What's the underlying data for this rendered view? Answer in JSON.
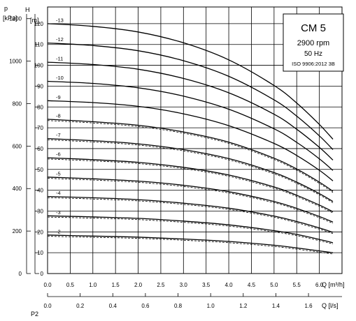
{
  "chart_data": {
    "type": "line",
    "title": "CM 5",
    "info": [
      "2900 rpm",
      "50 Hz",
      "ISO 9906:2012 3B"
    ],
    "left_axis_letter": "p",
    "left_axis_unit": "[kPa]",
    "head_axis_letter": "H",
    "head_axis_unit": "[m]",
    "xlabel": "Q [m³/h]",
    "x2label": "Q [l/s]",
    "bottom_cut_label": "P2",
    "xlim": [
      0,
      6.5
    ],
    "ylim": [
      0,
      128
    ],
    "kpa_lim": [
      0,
      1255
    ],
    "x_ticks": [
      "0.0",
      "0.5",
      "1.0",
      "1.5",
      "2.0",
      "2.5",
      "3.0",
      "3.5",
      "4.0",
      "4.5",
      "5.0",
      "5.5",
      "6.0"
    ],
    "x_tick_values": [
      0,
      0.5,
      1,
      1.5,
      2,
      2.5,
      3,
      3.5,
      4,
      4.5,
      5,
      5.5,
      6
    ],
    "x2_ticks": [
      "0.0",
      "0.2",
      "0.4",
      "0.6",
      "0.8",
      "1.0",
      "1.2",
      "1.4",
      "1.6"
    ],
    "x2_tick_values": [
      0,
      0.2,
      0.4,
      0.6,
      0.8,
      1.0,
      1.2,
      1.4,
      1.6
    ],
    "y_ticks": [
      "0",
      "10",
      "20",
      "30",
      "40",
      "50",
      "60",
      "70",
      "80",
      "90",
      "100",
      "110",
      "120"
    ],
    "y_tick_values": [
      0,
      10,
      20,
      30,
      40,
      50,
      60,
      70,
      80,
      90,
      100,
      110,
      120
    ],
    "kpa_ticks": [
      "0",
      "200",
      "400",
      "600",
      "800",
      "1000",
      "1200"
    ],
    "kpa_tick_values": [
      0,
      200,
      400,
      600,
      800,
      1000,
      1200
    ],
    "grid": true,
    "series": [
      {
        "name": "-2",
        "values": [
          [
            0,
            18.5
          ],
          [
            1,
            18.0
          ],
          [
            2,
            17.5
          ],
          [
            3,
            16.6
          ],
          [
            4,
            15.4
          ],
          [
            5,
            13.6
          ],
          [
            5.5,
            12.3
          ],
          [
            6,
            10.9
          ],
          [
            6.3,
            10.0
          ]
        ],
        "dashed": true
      },
      {
        "name": "-3",
        "values": [
          [
            0,
            27.7
          ],
          [
            1,
            27.2
          ],
          [
            2,
            26.5
          ],
          [
            3,
            25.2
          ],
          [
            4,
            23.4
          ],
          [
            5,
            20.6
          ],
          [
            5.5,
            18.8
          ],
          [
            6,
            16.4
          ],
          [
            6.3,
            14.8
          ]
        ],
        "dashed": true
      },
      {
        "name": "-4",
        "values": [
          [
            0,
            37.0
          ],
          [
            1,
            36.4
          ],
          [
            2,
            35.5
          ],
          [
            3,
            33.8
          ],
          [
            4,
            31.4
          ],
          [
            5,
            27.6
          ],
          [
            5.5,
            25.0
          ],
          [
            6,
            21.9
          ],
          [
            6.3,
            19.8
          ]
        ],
        "dashed": true
      },
      {
        "name": "-5",
        "values": [
          [
            0,
            46.3
          ],
          [
            1,
            45.5
          ],
          [
            2,
            44.4
          ],
          [
            3,
            42.4
          ],
          [
            4,
            39.3
          ],
          [
            5,
            34.6
          ],
          [
            5.5,
            31.3
          ],
          [
            6,
            27.4
          ],
          [
            6.3,
            24.7
          ]
        ],
        "dashed": true
      },
      {
        "name": "-6",
        "values": [
          [
            0,
            55.6
          ],
          [
            1,
            54.7
          ],
          [
            2,
            53.4
          ],
          [
            3,
            51.0
          ],
          [
            4,
            47.3
          ],
          [
            5,
            41.6
          ],
          [
            5.5,
            37.6
          ],
          [
            6,
            32.9
          ],
          [
            6.3,
            29.7
          ]
        ],
        "dashed": true
      },
      {
        "name": "-7",
        "values": [
          [
            0,
            64.8
          ],
          [
            1,
            63.8
          ],
          [
            2,
            62.3
          ],
          [
            3,
            59.5
          ],
          [
            4,
            55.2
          ],
          [
            5,
            48.5
          ],
          [
            5.5,
            43.9
          ],
          [
            6,
            38.4
          ],
          [
            6.3,
            34.6
          ]
        ],
        "dashed": true
      },
      {
        "name": "-8",
        "values": [
          [
            0,
            74.1
          ],
          [
            1,
            72.9
          ],
          [
            2,
            71.2
          ],
          [
            3,
            68.0
          ],
          [
            4,
            63.1
          ],
          [
            5,
            55.4
          ],
          [
            5.5,
            50.2
          ],
          [
            6,
            43.9
          ],
          [
            6.3,
            39.5
          ]
        ],
        "dashed": true
      },
      {
        "name": "-9",
        "values": [
          [
            0,
            83.0
          ],
          [
            1,
            82.1
          ],
          [
            2,
            80.3
          ],
          [
            3,
            76.7
          ],
          [
            4,
            71.0
          ],
          [
            5,
            62.5
          ],
          [
            5.5,
            56.7
          ],
          [
            6,
            49.6
          ],
          [
            6.3,
            44.5
          ]
        ],
        "dashed": false
      },
      {
        "name": "-10",
        "values": [
          [
            0,
            92.3
          ],
          [
            1,
            91.3
          ],
          [
            2,
            89.2
          ],
          [
            3,
            85.2
          ],
          [
            4,
            78.9
          ],
          [
            5,
            69.5
          ],
          [
            5.5,
            63.0
          ],
          [
            6,
            55.1
          ],
          [
            6.3,
            49.5
          ]
        ],
        "dashed": false
      },
      {
        "name": "-11",
        "values": [
          [
            0,
            101.5
          ],
          [
            1,
            100.4
          ],
          [
            2,
            98.1
          ],
          [
            3,
            93.7
          ],
          [
            4,
            86.8
          ],
          [
            5,
            76.5
          ],
          [
            5.5,
            69.3
          ],
          [
            6,
            60.6
          ],
          [
            6.3,
            54.5
          ]
        ],
        "dashed": false
      },
      {
        "name": "-12",
        "values": [
          [
            0,
            110.7
          ],
          [
            1,
            109.5
          ],
          [
            2,
            107.0
          ],
          [
            3,
            102.2
          ],
          [
            4,
            94.7
          ],
          [
            5,
            83.4
          ],
          [
            5.5,
            75.6
          ],
          [
            6,
            66.1
          ],
          [
            6.3,
            59.5
          ]
        ],
        "dashed": false
      },
      {
        "name": "-13",
        "values": [
          [
            0,
            120.0
          ],
          [
            1,
            118.7
          ],
          [
            2,
            116.0
          ],
          [
            3,
            110.8
          ],
          [
            4,
            102.6
          ],
          [
            5,
            90.3
          ],
          [
            5.5,
            81.9
          ],
          [
            6,
            71.6
          ],
          [
            6.3,
            64.5
          ]
        ],
        "dashed": false
      }
    ]
  }
}
